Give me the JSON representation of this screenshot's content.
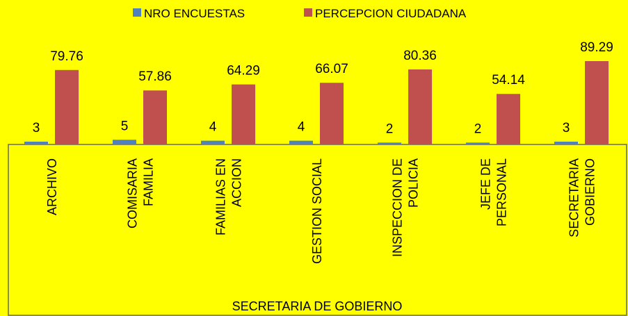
{
  "chart_data": {
    "type": "bar",
    "x_label": "SECRETARIA  DE GOBIERNO",
    "categories": [
      "ARCHIVO",
      "COMISARIA\nFAMILIA",
      "FAMILIAS EN\nACCION",
      "GESTION SOCIAL",
      "INSPECCION DE\nPOLICIA",
      "JEFE DE\nPERSONAL",
      "SECRETARIA\nGOBIERNO"
    ],
    "series": [
      {
        "name": "NRO ENCUESTAS",
        "color": "#4f81bd",
        "values": [
          3,
          5,
          4,
          4,
          2,
          2,
          3
        ]
      },
      {
        "name": "PERCEPCION CIUDADANA",
        "color": "#c0504d",
        "values": [
          79.76,
          57.86,
          64.29,
          66.07,
          80.36,
          54.14,
          89.29
        ]
      }
    ],
    "legend": "top"
  }
}
